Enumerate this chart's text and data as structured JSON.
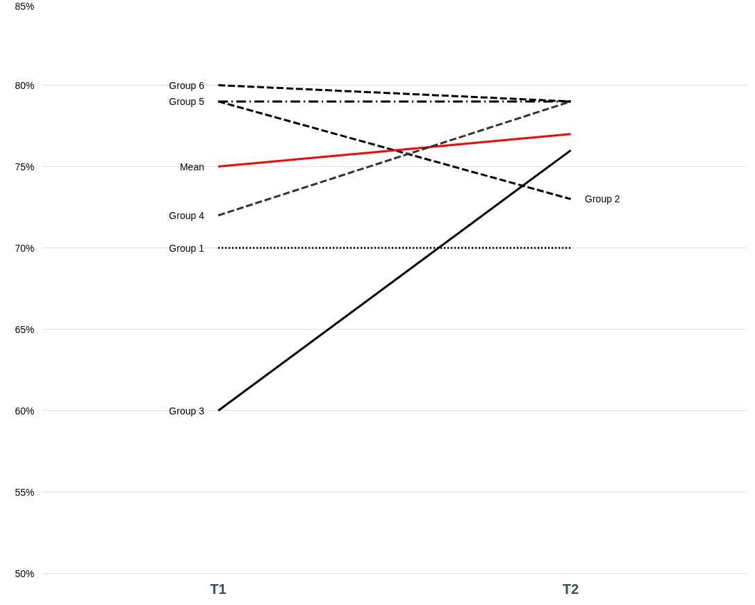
{
  "chart_data": {
    "type": "line",
    "categories": [
      "T1",
      "T2"
    ],
    "ylim": [
      50,
      85
    ],
    "yticks": [
      {
        "value": 50,
        "label": "50%"
      },
      {
        "value": 55,
        "label": "55%"
      },
      {
        "value": 60,
        "label": "60%"
      },
      {
        "value": 65,
        "label": "65%"
      },
      {
        "value": 70,
        "label": "70%"
      },
      {
        "value": 75,
        "label": "75%"
      },
      {
        "value": 80,
        "label": "80%"
      },
      {
        "value": 85,
        "label": "85%"
      }
    ],
    "grid": "y",
    "marker": "none",
    "series": [
      {
        "name": "Group 6",
        "color": "#000000",
        "values": [
          80,
          79
        ],
        "line_style": "dashed"
      },
      {
        "name": "Group 5",
        "color": "#000000",
        "values": [
          79,
          79
        ],
        "line_style": "dashdot"
      },
      {
        "name": "Group 2",
        "color": "#000000",
        "values": [
          79,
          73
        ],
        "line_style": "dashed"
      },
      {
        "name": "Mean",
        "color": "#ff0000",
        "values": [
          75,
          77
        ],
        "line_style": "solid"
      },
      {
        "name": "Group 4",
        "color": "#333333",
        "values": [
          72,
          79
        ],
        "line_style": "dashed"
      },
      {
        "name": "Group 1",
        "color": "#000000",
        "values": [
          70,
          70
        ],
        "line_style": "dotted"
      },
      {
        "name": "Group 3",
        "color": "#000000",
        "values": [
          60,
          76
        ],
        "line_style": "solid"
      }
    ]
  }
}
